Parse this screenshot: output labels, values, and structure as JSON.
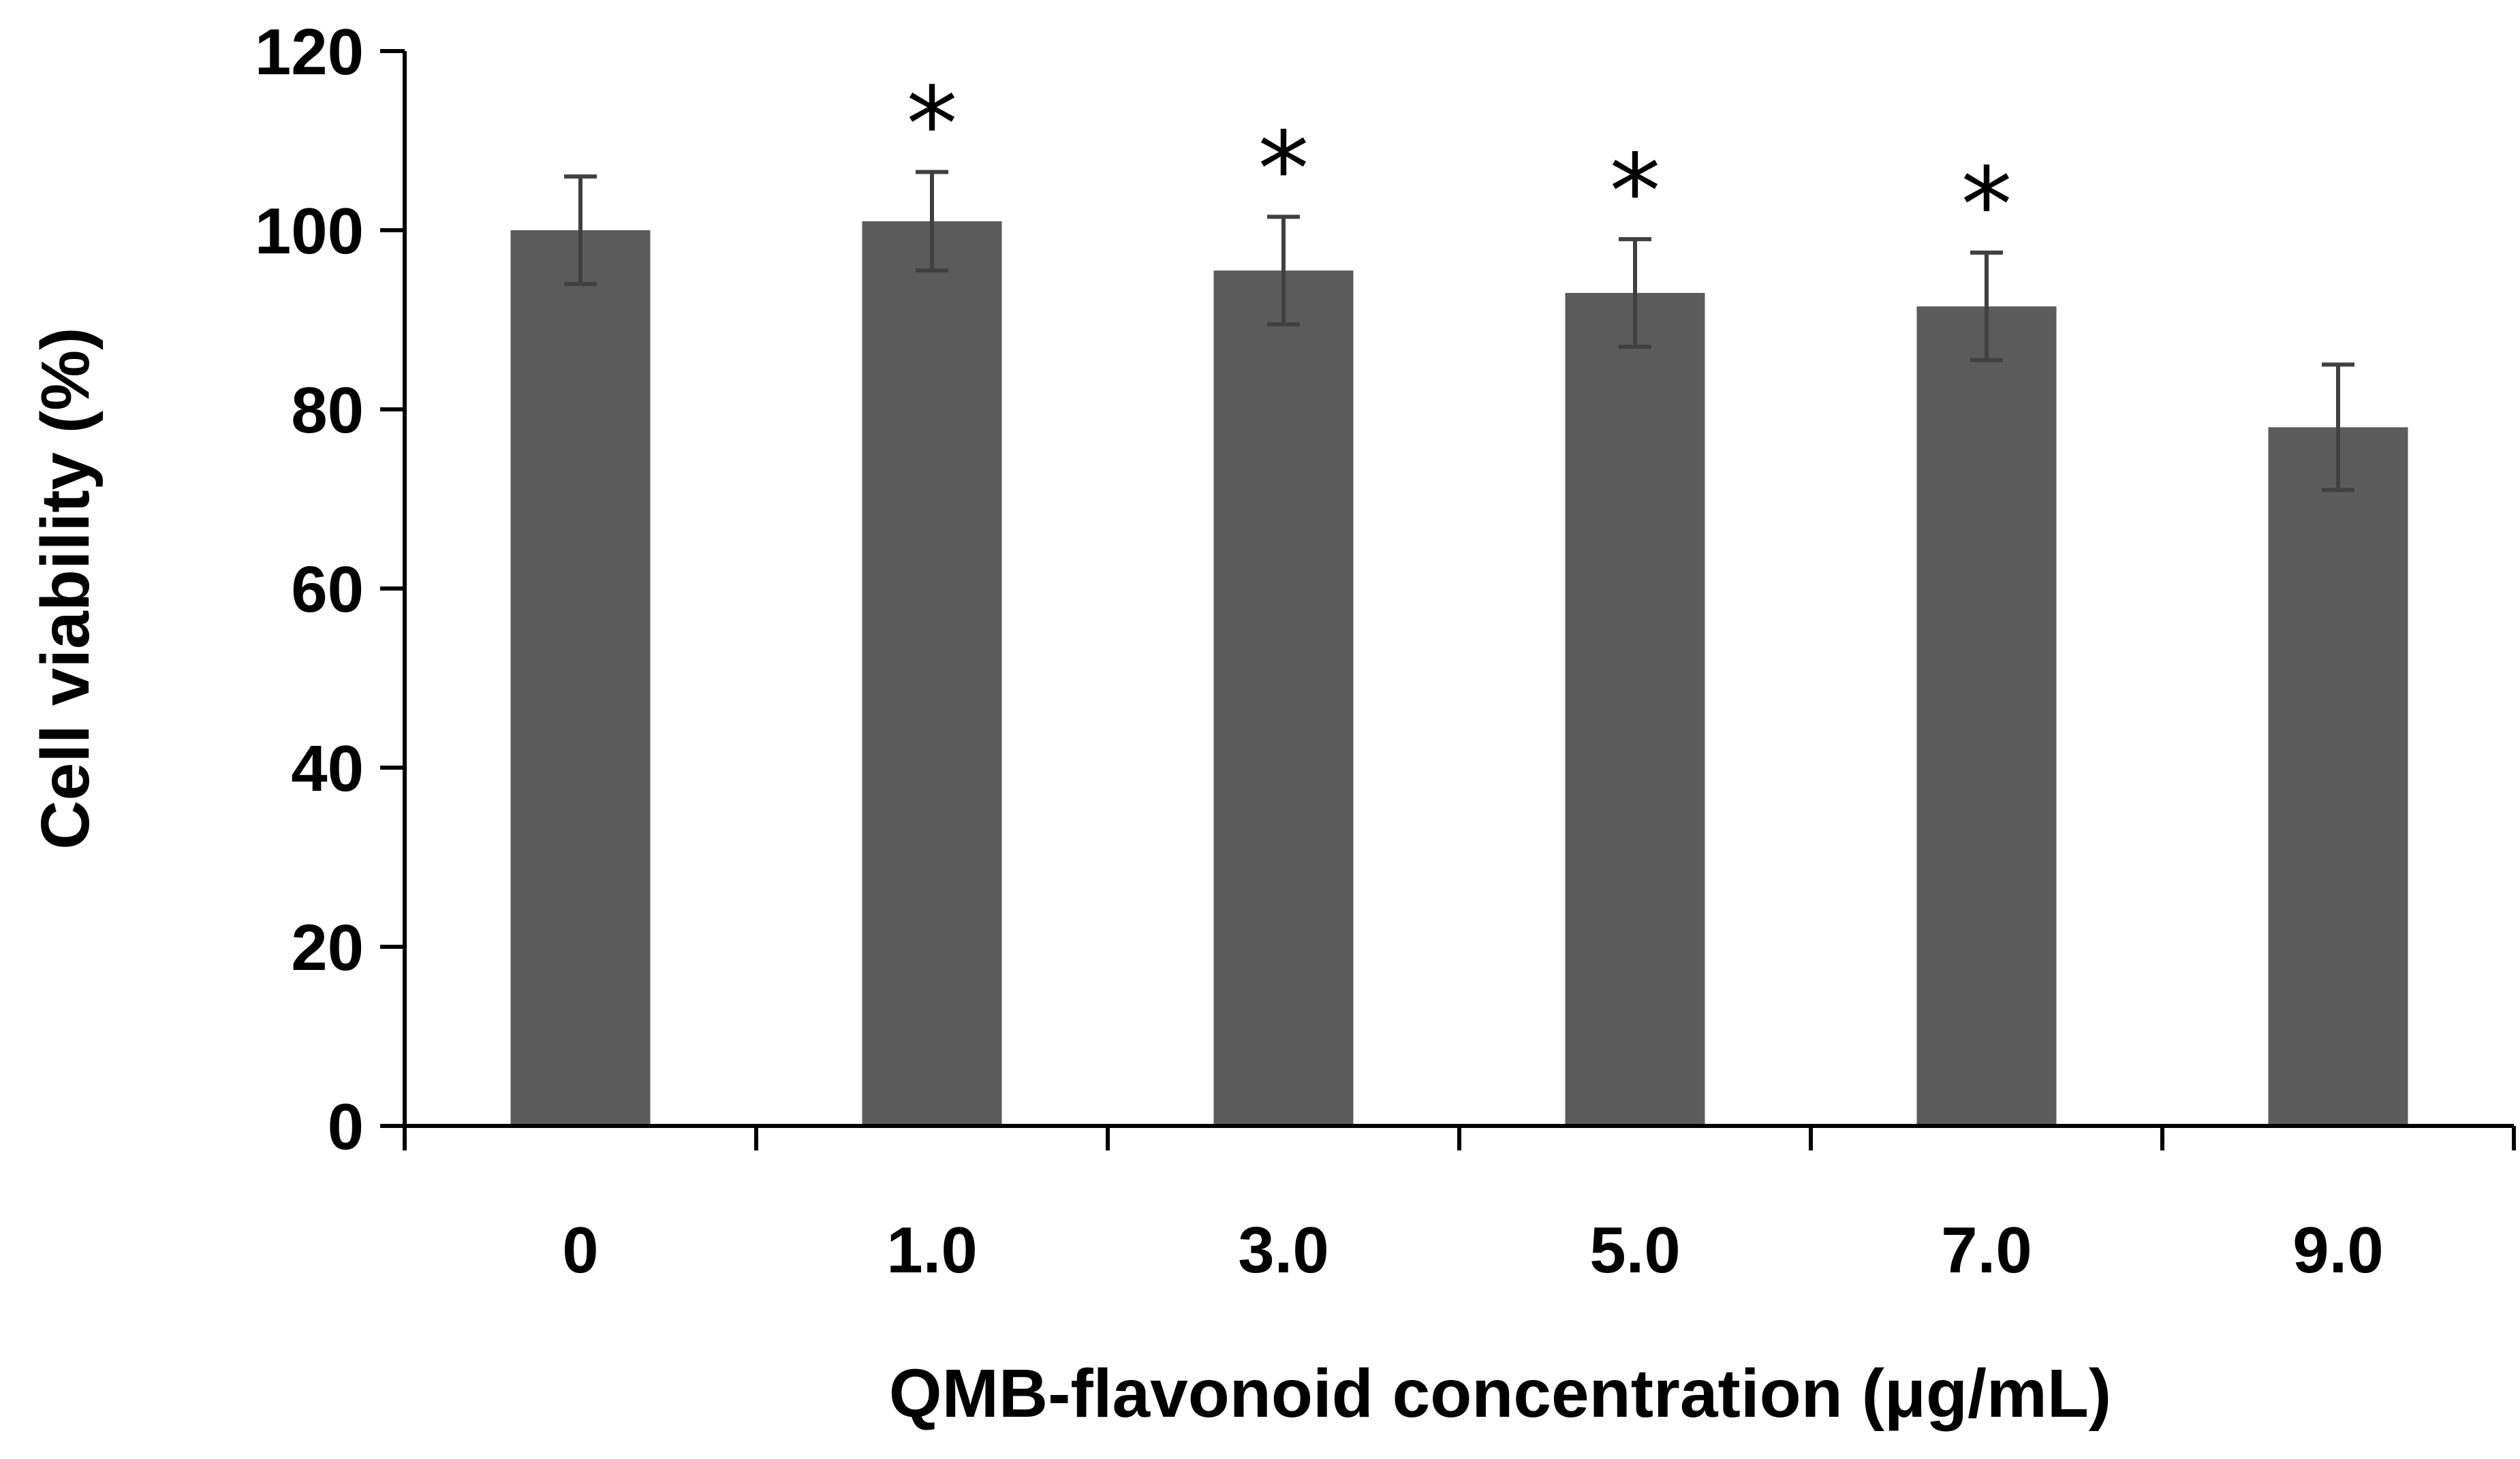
{
  "chart_data": {
    "type": "bar",
    "title": "",
    "xlabel": "QMB-flavonoid concentration (μg/mL)",
    "ylabel": "Cell viability (%)",
    "categories": [
      "0",
      "1.0",
      "3.0",
      "5.0",
      "7.0",
      "9.0"
    ],
    "values": [
      100,
      101,
      95.5,
      93,
      91.5,
      78
    ],
    "errors": [
      6,
      5.5,
      6,
      6,
      6,
      7
    ],
    "significance": [
      "",
      "*",
      "*",
      "*",
      "*",
      ""
    ],
    "ylim": [
      0,
      120
    ],
    "yticks": [
      "0",
      "20",
      "40",
      "60",
      "80",
      "100",
      "120"
    ],
    "grid": false,
    "legend": "none",
    "bar_color": "#5b5b5b",
    "error_bar_color": "#404040",
    "axis_color": "#000000"
  }
}
